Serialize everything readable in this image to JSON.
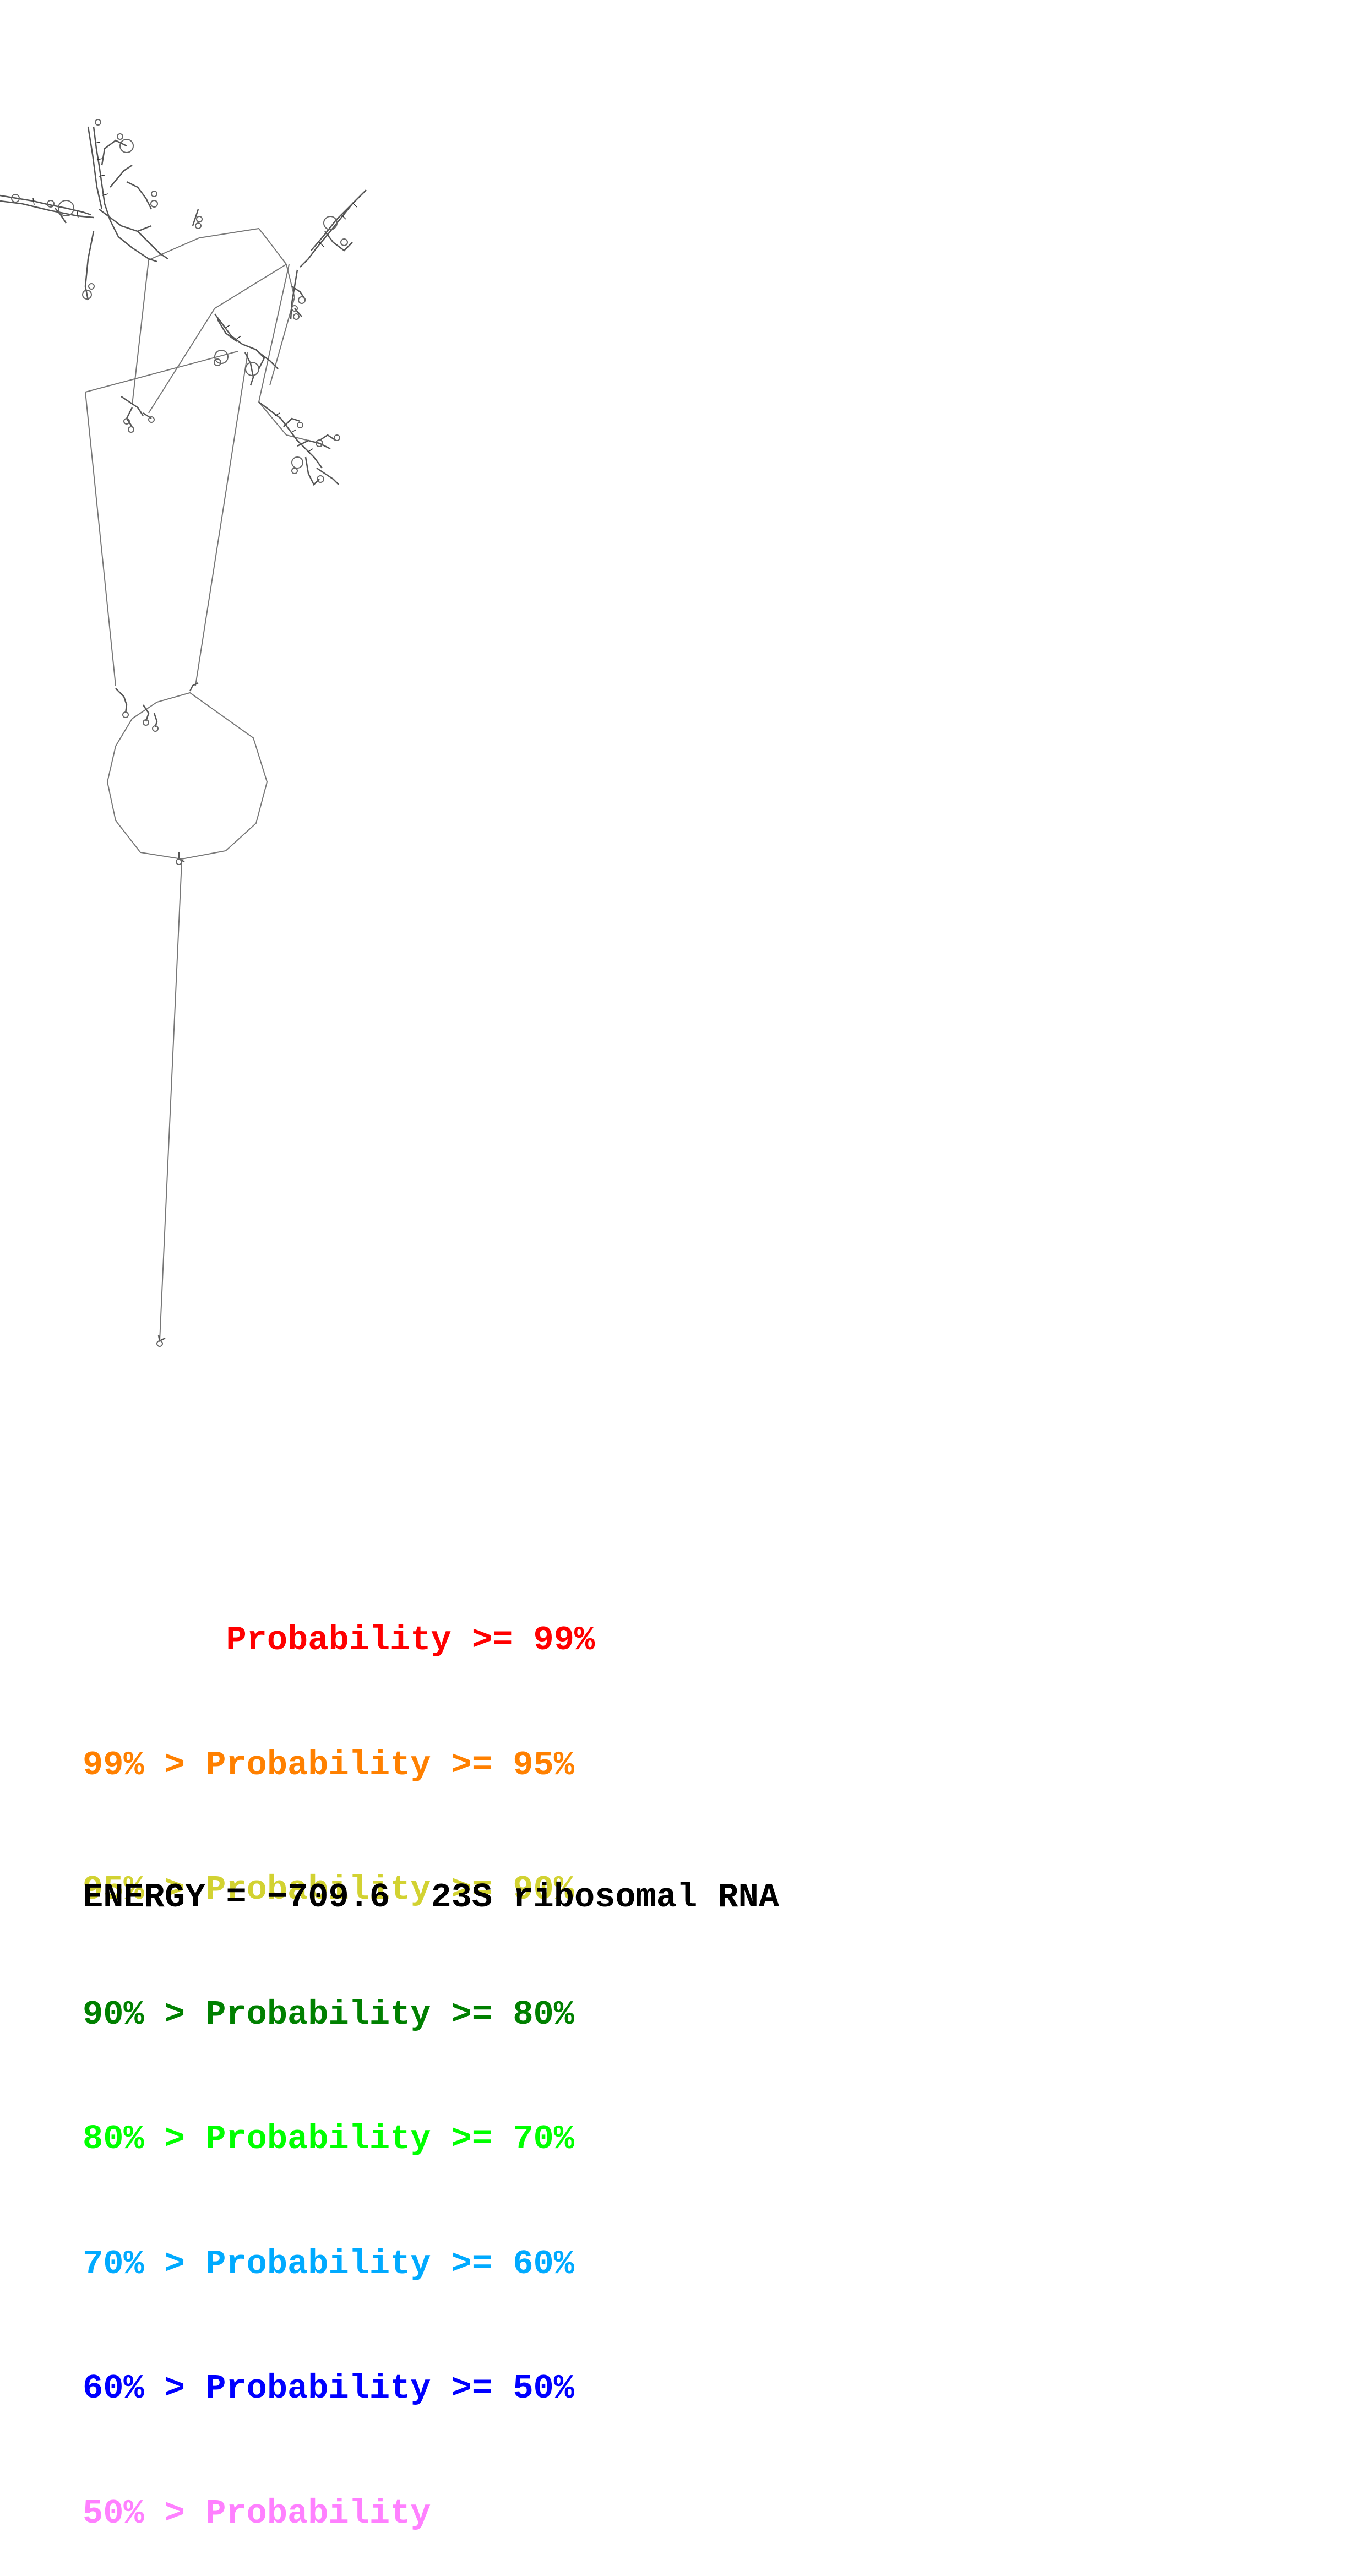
{
  "legend": [
    {
      "text": "       Probability >= 99%",
      "color": "#ff0000"
    },
    {
      "text": "99% > Probability >= 95%",
      "color": "#ff8000"
    },
    {
      "text": "95% > Probability >= 90%",
      "color": "#d2d232"
    },
    {
      "text": "90% > Probability >= 80%",
      "color": "#008000"
    },
    {
      "text": "80% > Probability >= 70%",
      "color": "#00ff00"
    },
    {
      "text": "70% > Probability >= 60%",
      "color": "#00aaff"
    },
    {
      "text": "60% > Probability >= 50%",
      "color": "#0000ff"
    },
    {
      "text": "50% > Probability",
      "color": "#ff80ff"
    }
  ],
  "footer": {
    "energy_label": "ENERGY = −709.6",
    "molecule_name": "23S ribosomal RNA"
  },
  "colors": {
    "backbone": "#777777",
    "base_pairs": "#333333",
    "background": "#ffffff"
  }
}
